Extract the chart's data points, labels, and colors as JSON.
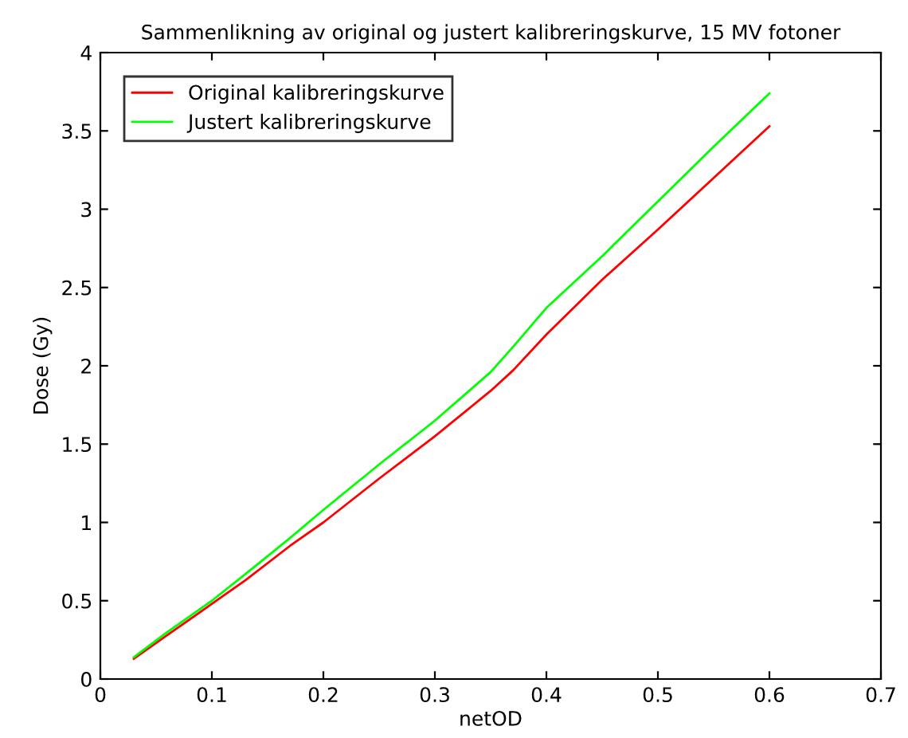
{
  "chart_data": {
    "type": "line",
    "title": "Sammenlikning av original og justert kalibreringskurve, 15 MV fotoner",
    "xlabel": "netOD",
    "ylabel": "Dose (Gy)",
    "series": [
      {
        "name": "Original kalibreringskurve",
        "color": "#ff0000",
        "x": [
          0.03,
          0.06,
          0.1,
          0.13,
          0.17,
          0.2,
          0.25,
          0.3,
          0.35,
          0.37,
          0.4,
          0.45,
          0.5,
          0.55,
          0.6
        ],
        "values": [
          0.13,
          0.28,
          0.48,
          0.63,
          0.85,
          1.0,
          1.28,
          1.55,
          1.84,
          1.97,
          2.2,
          2.55,
          2.87,
          3.2,
          3.53
        ]
      },
      {
        "name": "Justert kalibreringskurve",
        "color": "#00ff00",
        "x": [
          0.03,
          0.06,
          0.1,
          0.13,
          0.17,
          0.2,
          0.25,
          0.3,
          0.35,
          0.37,
          0.4,
          0.45,
          0.5,
          0.55,
          0.6
        ],
        "values": [
          0.14,
          0.3,
          0.5,
          0.67,
          0.9,
          1.08,
          1.37,
          1.65,
          1.96,
          2.12,
          2.37,
          2.7,
          3.05,
          3.4,
          3.74
        ]
      }
    ],
    "xlim": [
      0,
      0.7
    ],
    "xticks": [
      0,
      0.1,
      0.2,
      0.3,
      0.4,
      0.5,
      0.6,
      0.7
    ],
    "ylim": [
      0,
      4
    ],
    "yticks": [
      0,
      0.5,
      1,
      1.5,
      2,
      2.5,
      3,
      3.5,
      4
    ],
    "grid": false,
    "legend": "top left",
    "marker": "none",
    "line_style": "solid"
  }
}
